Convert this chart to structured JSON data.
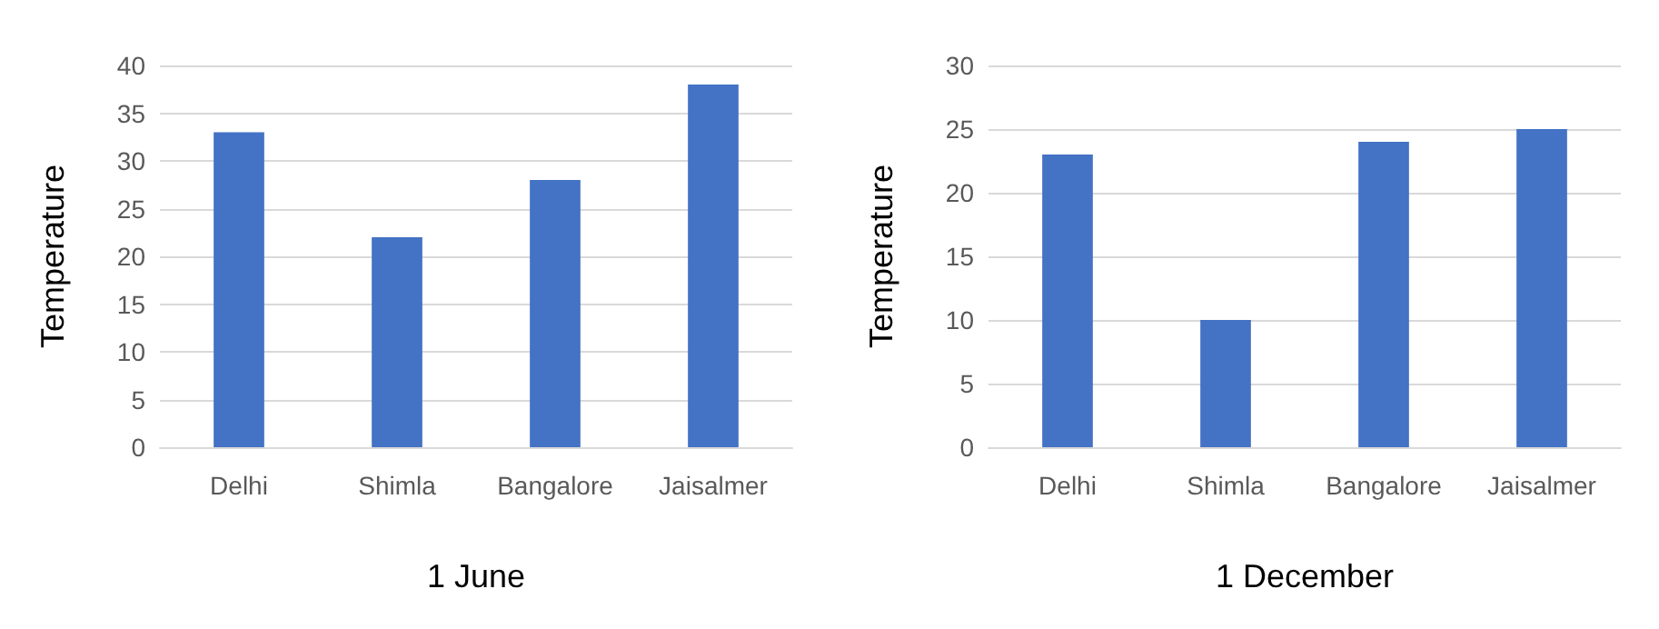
{
  "chart_data": [
    {
      "type": "bar",
      "xlabel": "1 June",
      "ylabel": "Temperature",
      "categories": [
        "Delhi",
        "Shimla",
        "Bangalore",
        "Jaisalmer"
      ],
      "values": [
        33,
        22,
        28,
        38
      ],
      "color": "#4472c4",
      "ylim": [
        0,
        40
      ],
      "yticks": [
        0,
        5,
        10,
        15,
        20,
        25,
        30,
        35,
        40
      ],
      "grid": "y"
    },
    {
      "type": "bar",
      "xlabel": "1 December",
      "ylabel": "Temperature",
      "categories": [
        "Delhi",
        "Shimla",
        "Bangalore",
        "Jaisalmer"
      ],
      "values": [
        23,
        10,
        24,
        25
      ],
      "color": "#4472c4",
      "ylim": [
        0,
        30
      ],
      "yticks": [
        0,
        5,
        10,
        15,
        20,
        25,
        30
      ],
      "grid": "y"
    }
  ]
}
